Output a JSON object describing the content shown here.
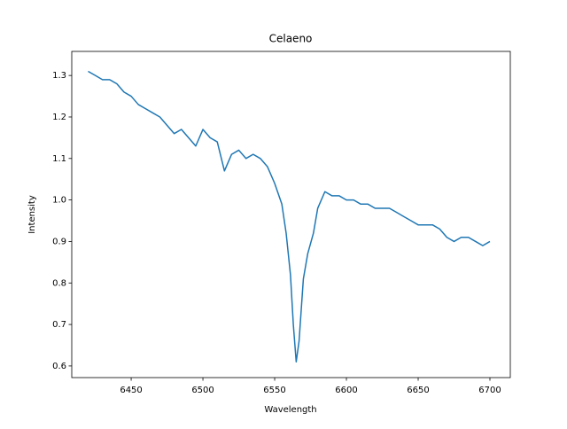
{
  "chart_data": {
    "type": "line",
    "title": "Celaeno",
    "x_label": "Wavelength",
    "y_label": "Intensity",
    "color": "#1f77b4",
    "x": [
      6420,
      6425,
      6430,
      6435,
      6440,
      6445,
      6450,
      6455,
      6460,
      6465,
      6470,
      6475,
      6480,
      6485,
      6490,
      6495,
      6500,
      6505,
      6510,
      6515,
      6520,
      6525,
      6530,
      6535,
      6540,
      6545,
      6550,
      6555,
      6558,
      6561,
      6563,
      6565,
      6567,
      6570,
      6573,
      6577,
      6580,
      6585,
      6590,
      6595,
      6600,
      6605,
      6610,
      6615,
      6620,
      6625,
      6630,
      6635,
      6640,
      6645,
      6650,
      6655,
      6660,
      6665,
      6670,
      6675,
      6680,
      6685,
      6690,
      6695,
      6700
    ],
    "values": [
      1.31,
      1.3,
      1.29,
      1.29,
      1.28,
      1.26,
      1.25,
      1.23,
      1.22,
      1.21,
      1.2,
      1.18,
      1.16,
      1.17,
      1.15,
      1.13,
      1.17,
      1.15,
      1.14,
      1.07,
      1.11,
      1.12,
      1.1,
      1.11,
      1.1,
      1.08,
      1.04,
      0.99,
      0.92,
      0.82,
      0.7,
      0.61,
      0.66,
      0.81,
      0.87,
      0.92,
      0.98,
      1.02,
      1.01,
      1.01,
      1.0,
      1.0,
      0.99,
      0.99,
      0.98,
      0.98,
      0.98,
      0.97,
      0.96,
      0.95,
      0.94,
      0.94,
      0.94,
      0.93,
      0.91,
      0.9,
      0.91,
      0.91,
      0.9,
      0.89,
      0.9
    ],
    "xlim": [
      6408.6,
      6714.2
    ],
    "ylim": [
      0.572,
      1.358
    ],
    "xticks": [
      6450,
      6500,
      6550,
      6600,
      6650,
      6700
    ],
    "yticks": [
      0.6,
      0.7,
      0.8,
      0.9,
      {
        "value": 1,
        "label": "1.0"
      },
      1.1,
      1.2,
      1.3
    ]
  }
}
